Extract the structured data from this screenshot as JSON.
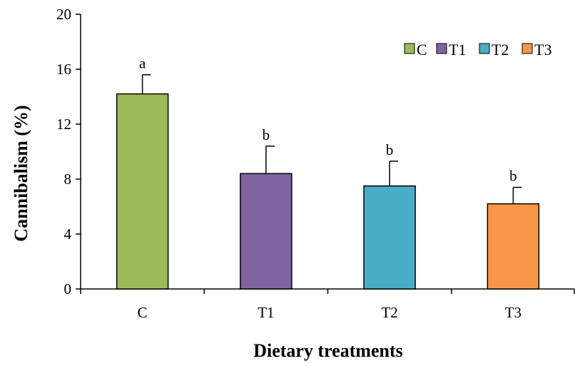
{
  "chart_data": {
    "type": "bar",
    "xlabel": "Dietary treatments",
    "ylabel": "Cannibalism (%)",
    "ylim": [
      0,
      20
    ],
    "yticks": [
      0,
      4,
      8,
      12,
      16,
      20
    ],
    "categories": [
      "C",
      "T1",
      "T2",
      "T3"
    ],
    "values": [
      14.2,
      8.4,
      7.5,
      6.2
    ],
    "errors": [
      1.4,
      2.0,
      1.8,
      1.2
    ],
    "significance_labels": [
      "a",
      "b",
      "b",
      "b"
    ],
    "colors": [
      "#9bbb59",
      "#8064a2",
      "#4bacc6",
      "#f79646"
    ],
    "legend": {
      "placement": "top-right",
      "entries": [
        "C",
        "T1",
        "T2",
        "T3"
      ]
    },
    "grid": false
  }
}
